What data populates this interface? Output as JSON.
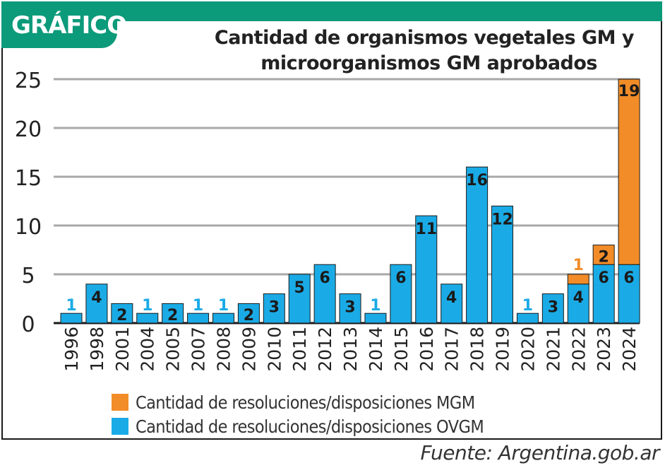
{
  "header": {
    "tab_label": "GRÁFICO"
  },
  "colors": {
    "accent": "#0b9a7a",
    "mgm": "#f28c28",
    "ovgm": "#1aabe6",
    "label_dark": "#1a1a1a",
    "label_light_blue": "#1aabe6",
    "label_orange": "#f28c28"
  },
  "chart_data": {
    "type": "bar",
    "stacked": true,
    "title_lines": [
      "Cantidad de organismos vegetales GM y",
      "microorganismos GM aprobados"
    ],
    "categories": [
      "1996",
      "1998",
      "2001",
      "2004",
      "2005",
      "2007",
      "2008",
      "2009",
      "2010",
      "2011",
      "2012",
      "2013",
      "2014",
      "2015",
      "2016",
      "2017",
      "2018",
      "2019",
      "2020",
      "2021",
      "2022",
      "2023",
      "2024"
    ],
    "series": [
      {
        "name": "Cantidad de resoluciones/disposiciones OVGM",
        "color": "#1aabe6",
        "values": [
          1,
          4,
          2,
          1,
          2,
          1,
          1,
          2,
          3,
          5,
          6,
          3,
          1,
          6,
          11,
          4,
          16,
          12,
          1,
          3,
          4,
          6,
          6
        ],
        "display_values": [
          1,
          4,
          2,
          1,
          2,
          1,
          1,
          2,
          3,
          5,
          6,
          3,
          1,
          6,
          11,
          4,
          16,
          12,
          1,
          3,
          4,
          6,
          6
        ]
      },
      {
        "name": "Cantidad de resoluciones/disposiciones MGM",
        "color": "#f28c28",
        "values": [
          0,
          0,
          0,
          0,
          0,
          0,
          0,
          0,
          0,
          0,
          0,
          0,
          0,
          0,
          0,
          0,
          0,
          0,
          0,
          0,
          1,
          2,
          19
        ],
        "display_values": [
          null,
          null,
          null,
          null,
          null,
          null,
          null,
          null,
          null,
          null,
          null,
          null,
          null,
          null,
          null,
          null,
          null,
          null,
          null,
          null,
          1,
          2,
          19
        ]
      }
    ],
    "y_ticks": [
      0,
      5,
      10,
      15,
      20,
      25
    ],
    "ylim": [
      0,
      25
    ],
    "grid": true,
    "legend_position": "bottom",
    "legend_order": [
      "Cantidad de resoluciones/disposiciones MGM",
      "Cantidad de resoluciones/disposiciones OVGM"
    ]
  },
  "source": "Fuente: Argentina.gob.ar"
}
